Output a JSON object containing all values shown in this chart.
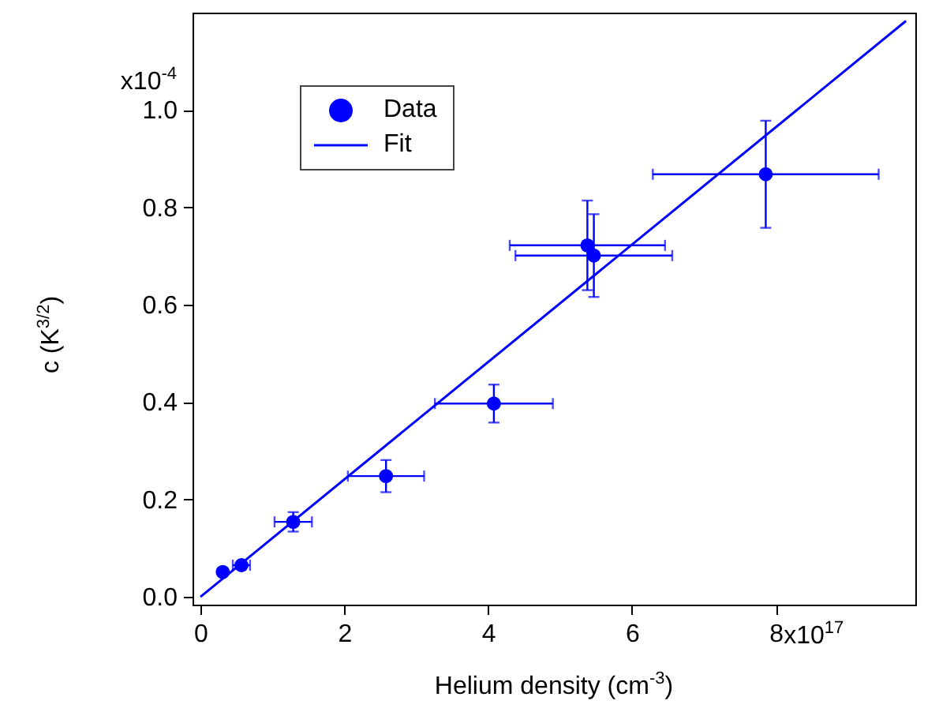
{
  "chart_data": {
    "type": "scatter",
    "xlabel": "Helium density (cm$^{-3}$)",
    "ylabel": "c (K$^{3/2}$)",
    "annotations": [
      "x10$^{17}$",
      "x10$^{-4}$"
    ],
    "xlim": [
      -0.11,
      9.94
    ],
    "ylim": [
      -0.016,
      1.2
    ],
    "xticks": [
      0,
      2,
      4,
      6,
      8
    ],
    "yticks": [
      {
        "value": 0,
        "label": "0.0"
      },
      0.2,
      0.4,
      0.6,
      0.8,
      {
        "value": 1.0,
        "label": "1.0"
      }
    ],
    "grid": false,
    "legend": "top left",
    "line_style": "solid",
    "series": [
      {
        "name": "Data",
        "marker": "circle",
        "color": "#0000ff",
        "x": [
          0.31,
          0.57,
          1.29,
          2.58,
          4.08,
          5.38,
          5.47,
          7.86
        ],
        "values": [
          0.051,
          0.065,
          0.154,
          0.248,
          0.397,
          0.722,
          0.701,
          0.868
        ],
        "errors": [
          null,
          null,
          0.02,
          0.033,
          0.039,
          0.092,
          0.085,
          0.11
        ],
        "xerrors": [
          null,
          0.12,
          0.26,
          0.53,
          0.82,
          1.08,
          1.09,
          1.57
        ]
      },
      {
        "name": "Fit",
        "type": "line",
        "marker": "none",
        "color": "#0000ff",
        "x": [
          0,
          9.81
        ],
        "values": [
          0,
          1.183
        ]
      }
    ]
  }
}
